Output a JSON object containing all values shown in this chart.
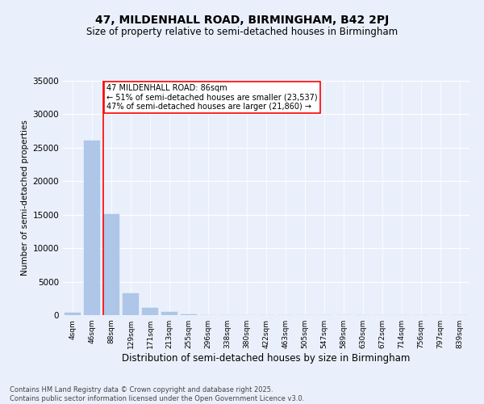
{
  "title": "47, MILDENHALL ROAD, BIRMINGHAM, B42 2PJ",
  "subtitle": "Size of property relative to semi-detached houses in Birmingham",
  "xlabel": "Distribution of semi-detached houses by size in Birmingham",
  "ylabel": "Number of semi-detached properties",
  "categories": [
    "4sqm",
    "46sqm",
    "88sqm",
    "129sqm",
    "171sqm",
    "213sqm",
    "255sqm",
    "296sqm",
    "338sqm",
    "380sqm",
    "422sqm",
    "463sqm",
    "505sqm",
    "547sqm",
    "589sqm",
    "630sqm",
    "672sqm",
    "714sqm",
    "756sqm",
    "797sqm",
    "839sqm"
  ],
  "values": [
    350,
    26100,
    15100,
    3300,
    1050,
    450,
    150,
    50,
    0,
    0,
    0,
    0,
    0,
    0,
    0,
    0,
    0,
    0,
    0,
    0,
    0
  ],
  "bar_color": "#aec6e8",
  "bar_edge_color": "#aec6e8",
  "vline_color": "red",
  "vline_x_index": 2,
  "annotation_text_line1": "47 MILDENHALL ROAD: 86sqm",
  "annotation_text_line2": "← 51% of semi-detached houses are smaller (23,537)",
  "annotation_text_line3": "47% of semi-detached houses are larger (21,860) →",
  "ylim": [
    0,
    35000
  ],
  "yticks": [
    0,
    5000,
    10000,
    15000,
    20000,
    25000,
    30000,
    35000
  ],
  "ytick_labels": [
    "0",
    "5000",
    "10000",
    "15000",
    "20000",
    "25000",
    "30000",
    "35000"
  ],
  "background_color": "#eaf0fb",
  "plot_background_color": "#eaf0fb",
  "footer_line1": "Contains HM Land Registry data © Crown copyright and database right 2025.",
  "footer_line2": "Contains public sector information licensed under the Open Government Licence v3.0.",
  "title_fontsize": 10,
  "subtitle_fontsize": 8.5,
  "ylabel_fontsize": 7.5,
  "xlabel_fontsize": 8.5,
  "ytick_fontsize": 7.5,
  "xtick_fontsize": 6.5,
  "footer_fontsize": 6,
  "annot_fontsize": 7
}
